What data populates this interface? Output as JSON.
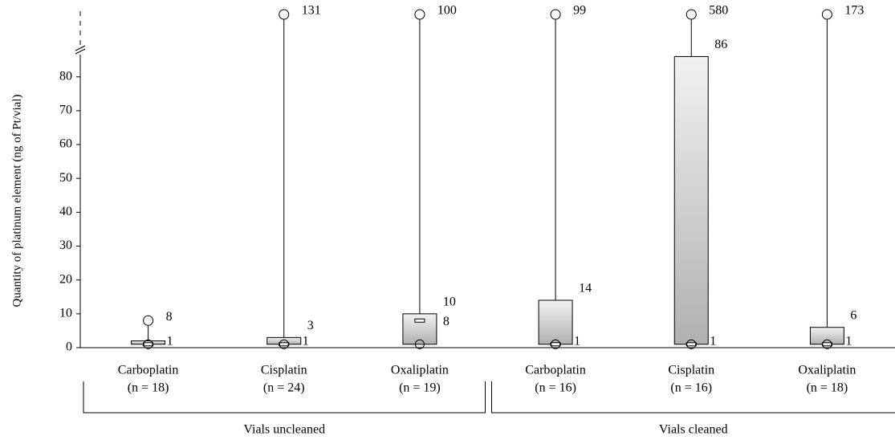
{
  "chart_data": {
    "type": "box",
    "y_label": "Quantity of platinum element (ng of Pt/vial)",
    "categories": [
      "Carboplatin",
      "Cisplatin",
      "Oxaliplatin",
      "Carboplatin",
      "Cisplatin",
      "Oxaliplatin"
    ],
    "n_labels": [
      "(n = 18)",
      "(n = 24)",
      "(n = 19)",
      "(n = 16)",
      "(n = 16)",
      "(n = 18)"
    ],
    "groups": [
      {
        "name": "Vials uncleaned",
        "size": 3
      },
      {
        "name": "Vials cleaned",
        "size": 3
      }
    ],
    "min": [
      1,
      1,
      1,
      1,
      1,
      1
    ],
    "min_value_labels": [
      "1",
      "1",
      null,
      "1",
      "1",
      "1"
    ],
    "median": [
      1,
      1,
      8,
      1,
      1,
      1
    ],
    "median_value_labels": [
      null,
      null,
      "8",
      null,
      null,
      null
    ],
    "q3": [
      2,
      3,
      10,
      14,
      86,
      6
    ],
    "q3_value_labels": [
      null,
      "3",
      "10",
      "14",
      "86",
      "6"
    ],
    "max": [
      8,
      131,
      100,
      99,
      580,
      173
    ],
    "max_value_labels": [
      "8",
      "131",
      "100",
      "99",
      "580",
      "173"
    ],
    "ylim": [
      0,
      88
    ],
    "yticks": [
      0,
      10,
      20,
      30,
      40,
      50,
      60,
      70,
      80
    ]
  }
}
